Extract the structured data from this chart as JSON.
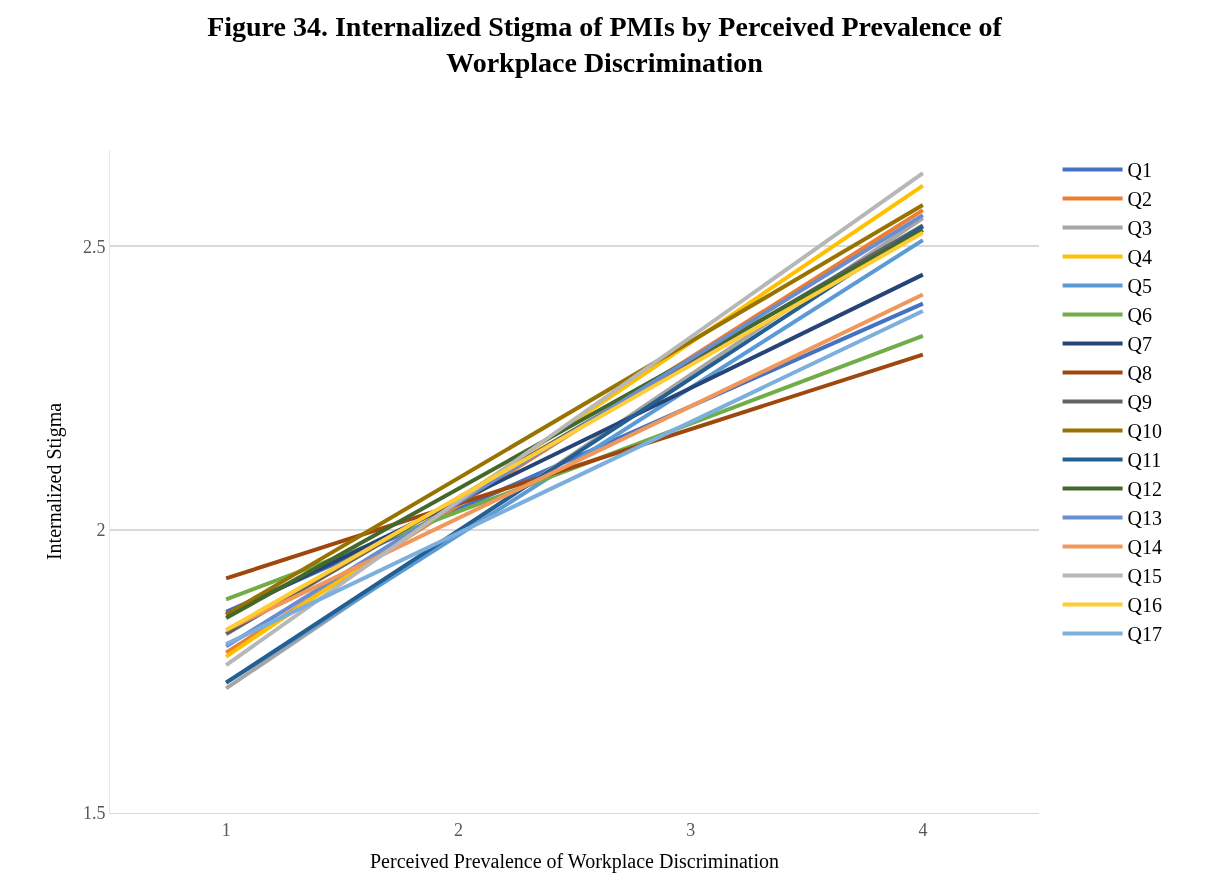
{
  "chart_data": {
    "type": "line",
    "title": "Figure 34. Internalized Stigma of PMIs by Perceived Prevalence of Workplace Discrimination",
    "xlabel": "Perceived Prevalence of Workplace Discrimination",
    "ylabel": "Internalized Stigma",
    "x": [
      1,
      4
    ],
    "xlim": [
      0.5,
      4.5
    ],
    "xticks": [
      1,
      2,
      3,
      4
    ],
    "ylim": [
      1.5,
      2.67
    ],
    "yticks": [
      1.5,
      2,
      2.5
    ],
    "grid": "y",
    "legend": "right",
    "marker": "none",
    "line_style": "solid",
    "series": [
      {
        "name": "Q1",
        "color": "#4472c4",
        "values": [
          1.855,
          2.399
        ]
      },
      {
        "name": "Q2",
        "color": "#ed7d31",
        "values": [
          1.783,
          2.564
        ]
      },
      {
        "name": "Q3",
        "color": "#a5a5a5",
        "values": [
          1.72,
          2.55
        ]
      },
      {
        "name": "Q4",
        "color": "#ffc000",
        "values": [
          1.776,
          2.607
        ]
      },
      {
        "name": "Q5",
        "color": "#5b9bd5",
        "values": [
          1.73,
          2.511
        ]
      },
      {
        "name": "Q6",
        "color": "#70ad47",
        "values": [
          1.877,
          2.342
        ]
      },
      {
        "name": "Q7",
        "color": "#264478",
        "values": [
          1.85,
          2.45
        ]
      },
      {
        "name": "Q8",
        "color": "#9e480e",
        "values": [
          1.914,
          2.309
        ]
      },
      {
        "name": "Q9",
        "color": "#636363",
        "values": [
          1.816,
          2.537
        ]
      },
      {
        "name": "Q10",
        "color": "#997300",
        "values": [
          1.85,
          2.573
        ]
      },
      {
        "name": "Q11",
        "color": "#255e91",
        "values": [
          1.73,
          2.535
        ]
      },
      {
        "name": "Q12",
        "color": "#43682b",
        "values": [
          1.844,
          2.529
        ]
      },
      {
        "name": "Q13",
        "color": "#698ed0",
        "values": [
          1.794,
          2.555
        ]
      },
      {
        "name": "Q14",
        "color": "#f1975a",
        "values": [
          1.823,
          2.415
        ]
      },
      {
        "name": "Q15",
        "color": "#b7b7b7",
        "values": [
          1.761,
          2.629
        ]
      },
      {
        "name": "Q16",
        "color": "#ffcd33",
        "values": [
          1.823,
          2.524
        ]
      },
      {
        "name": "Q17",
        "color": "#7cafdd",
        "values": [
          1.798,
          2.386
        ]
      }
    ]
  }
}
